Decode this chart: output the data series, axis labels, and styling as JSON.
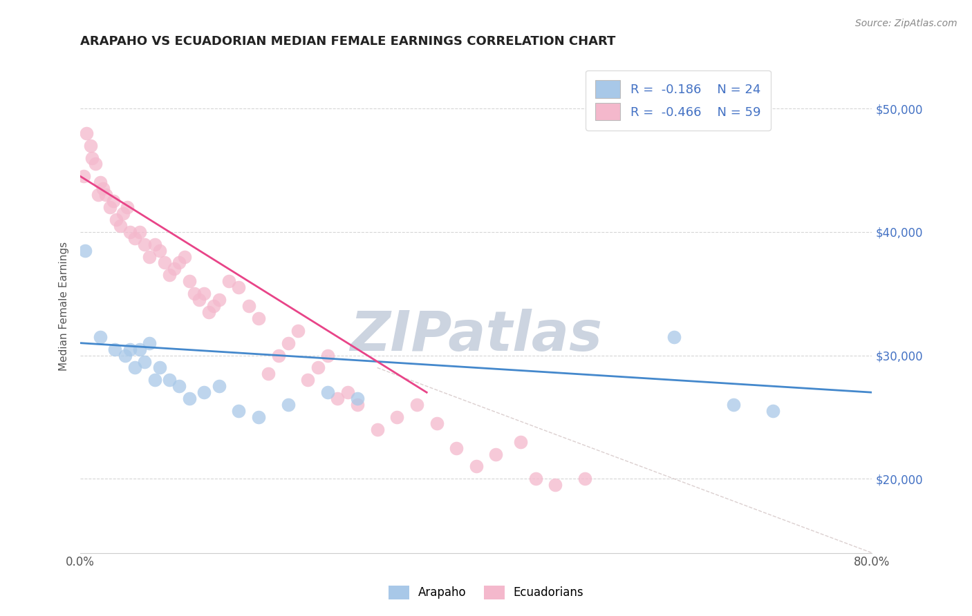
{
  "title": "ARAPAHO VS ECUADORIAN MEDIAN FEMALE EARNINGS CORRELATION CHART",
  "source": "Source: ZipAtlas.com",
  "ylabel": "Median Female Earnings",
  "y_ticks": [
    20000,
    30000,
    40000,
    50000
  ],
  "y_tick_labels": [
    "$20,000",
    "$30,000",
    "$40,000",
    "$50,000"
  ],
  "xlim": [
    0.0,
    80.0
  ],
  "ylim": [
    14000,
    54000
  ],
  "arapaho_color": "#a8c8e8",
  "ecuadorian_color": "#f4b8cc",
  "arapaho_line_color": "#4488cc",
  "ecuadorian_line_color": "#e84488",
  "ref_line_color": "#ccbbbb",
  "watermark": "ZIPatlas",
  "watermark_color": "#ccd4e0",
  "legend_r_arapaho": "R =  -0.186",
  "legend_n_arapaho": "N = 24",
  "legend_r_ecuadorian": "R =  -0.466",
  "legend_n_ecuadorian": "N = 59",
  "arapaho_x": [
    0.5,
    2.0,
    3.5,
    4.5,
    5.0,
    5.5,
    6.0,
    6.5,
    7.0,
    7.5,
    8.0,
    9.0,
    10.0,
    11.0,
    12.5,
    14.0,
    16.0,
    18.0,
    21.0,
    25.0,
    28.0,
    60.0,
    66.0,
    70.0
  ],
  "arapaho_y": [
    38500,
    31500,
    30500,
    30000,
    30500,
    29000,
    30500,
    29500,
    31000,
    28000,
    29000,
    28000,
    27500,
    26500,
    27000,
    27500,
    25500,
    25000,
    26000,
    27000,
    26500,
    31500,
    26000,
    25500
  ],
  "ecuadorian_x": [
    0.3,
    0.6,
    1.0,
    1.2,
    1.5,
    1.8,
    2.0,
    2.3,
    2.6,
    3.0,
    3.3,
    3.6,
    4.0,
    4.3,
    4.7,
    5.0,
    5.5,
    6.0,
    6.5,
    7.0,
    7.5,
    8.0,
    8.5,
    9.0,
    9.5,
    10.0,
    10.5,
    11.0,
    11.5,
    12.0,
    12.5,
    13.0,
    13.5,
    14.0,
    15.0,
    16.0,
    17.0,
    18.0,
    19.0,
    20.0,
    21.0,
    22.0,
    23.0,
    24.0,
    25.0,
    26.0,
    27.0,
    28.0,
    30.0,
    32.0,
    34.0,
    36.0,
    38.0,
    40.0,
    42.0,
    44.5,
    46.0,
    48.0,
    51.0
  ],
  "ecuadorian_y": [
    44500,
    48000,
    47000,
    46000,
    45500,
    43000,
    44000,
    43500,
    43000,
    42000,
    42500,
    41000,
    40500,
    41500,
    42000,
    40000,
    39500,
    40000,
    39000,
    38000,
    39000,
    38500,
    37500,
    36500,
    37000,
    37500,
    38000,
    36000,
    35000,
    34500,
    35000,
    33500,
    34000,
    34500,
    36000,
    35500,
    34000,
    33000,
    28500,
    30000,
    31000,
    32000,
    28000,
    29000,
    30000,
    26500,
    27000,
    26000,
    24000,
    25000,
    26000,
    24500,
    22500,
    21000,
    22000,
    23000,
    20000,
    19500,
    20000
  ],
  "arapaho_line_x": [
    0.0,
    80.0
  ],
  "arapaho_line_y": [
    31000,
    27000
  ],
  "ecuadorian_line_x": [
    0.0,
    35.0
  ],
  "ecuadorian_line_y": [
    44500,
    27000
  ],
  "ref_line_x": [
    30.0,
    80.0
  ],
  "ref_line_y": [
    29000,
    14000
  ],
  "background_color": "#ffffff",
  "grid_color": "#cccccc",
  "tick_label_color": "#4472c4",
  "title_fontsize": 13,
  "axis_label_fontsize": 11
}
